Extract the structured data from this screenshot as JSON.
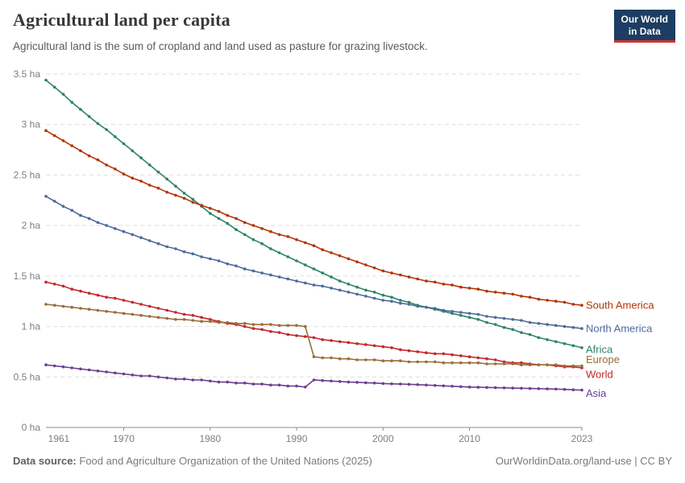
{
  "header": {
    "title": "Agricultural land per capita",
    "subtitle": "Agricultural land is the sum of cropland and land used as pasture for grazing livestock."
  },
  "logo": {
    "line1": "Our World",
    "line2": "in Data",
    "bg": "#1D3D63",
    "accent": "#D0342C"
  },
  "chart_data": {
    "type": "line",
    "title": "Agricultural land per capita",
    "unit": "ha",
    "x_range": [
      1961,
      2023
    ],
    "x_step": 1,
    "x_ticks": [
      1961,
      1970,
      1980,
      1990,
      2000,
      2010,
      2023
    ],
    "y_ticks": [
      0,
      0.5,
      1,
      1.5,
      2,
      2.5,
      3,
      3.5
    ],
    "y_tick_suffix": " ha",
    "ylim": [
      0,
      3.5
    ],
    "grid": "horizontal-dashed",
    "legend_position": "right-end-labels",
    "colors": {
      "grid": "#dedede",
      "axis": "#8c8c8c",
      "tick_text": "#7e7e7e"
    },
    "series": [
      {
        "name": "Africa",
        "color": "#2C8465",
        "label_dy": 2,
        "values": [
          3.44,
          3.37,
          3.3,
          3.22,
          3.15,
          3.08,
          3.01,
          2.95,
          2.88,
          2.81,
          2.74,
          2.67,
          2.6,
          2.53,
          2.46,
          2.39,
          2.32,
          2.26,
          2.19,
          2.12,
          2.07,
          2.02,
          1.96,
          1.91,
          1.86,
          1.82,
          1.77,
          1.73,
          1.69,
          1.65,
          1.61,
          1.57,
          1.53,
          1.49,
          1.45,
          1.42,
          1.39,
          1.36,
          1.34,
          1.31,
          1.29,
          1.26,
          1.24,
          1.21,
          1.19,
          1.17,
          1.15,
          1.13,
          1.11,
          1.09,
          1.07,
          1.04,
          1.02,
          0.99,
          0.97,
          0.94,
          0.92,
          0.89,
          0.87,
          0.85,
          0.83,
          0.81,
          0.79
        ]
      },
      {
        "name": "South America",
        "color": "#B13507",
        "label_dy": 0,
        "values": [
          2.94,
          2.89,
          2.84,
          2.79,
          2.74,
          2.69,
          2.65,
          2.6,
          2.56,
          2.51,
          2.47,
          2.44,
          2.4,
          2.37,
          2.33,
          2.3,
          2.27,
          2.23,
          2.2,
          2.17,
          2.14,
          2.1,
          2.07,
          2.03,
          2.0,
          1.97,
          1.94,
          1.91,
          1.89,
          1.86,
          1.83,
          1.8,
          1.76,
          1.73,
          1.7,
          1.67,
          1.64,
          1.61,
          1.58,
          1.55,
          1.53,
          1.51,
          1.49,
          1.47,
          1.45,
          1.44,
          1.42,
          1.41,
          1.39,
          1.38,
          1.37,
          1.35,
          1.34,
          1.33,
          1.32,
          1.3,
          1.29,
          1.27,
          1.26,
          1.25,
          1.24,
          1.22,
          1.21
        ]
      },
      {
        "name": "North America",
        "color": "#4C6A9C",
        "label_dy": 0,
        "values": [
          2.29,
          2.24,
          2.19,
          2.15,
          2.1,
          2.07,
          2.03,
          2.0,
          1.97,
          1.94,
          1.91,
          1.88,
          1.85,
          1.82,
          1.79,
          1.77,
          1.74,
          1.72,
          1.69,
          1.67,
          1.65,
          1.62,
          1.6,
          1.57,
          1.55,
          1.53,
          1.51,
          1.49,
          1.47,
          1.45,
          1.43,
          1.41,
          1.4,
          1.38,
          1.36,
          1.34,
          1.32,
          1.3,
          1.28,
          1.26,
          1.25,
          1.23,
          1.22,
          1.2,
          1.19,
          1.18,
          1.16,
          1.15,
          1.14,
          1.13,
          1.12,
          1.1,
          1.09,
          1.08,
          1.07,
          1.06,
          1.04,
          1.03,
          1.02,
          1.01,
          1.0,
          0.99,
          0.98
        ]
      },
      {
        "name": "World",
        "color": "#C3272B",
        "label_dy": 8,
        "values": [
          1.44,
          1.42,
          1.4,
          1.37,
          1.35,
          1.33,
          1.31,
          1.29,
          1.28,
          1.26,
          1.24,
          1.22,
          1.2,
          1.18,
          1.16,
          1.14,
          1.12,
          1.11,
          1.09,
          1.07,
          1.05,
          1.03,
          1.02,
          1.0,
          0.98,
          0.97,
          0.95,
          0.94,
          0.92,
          0.91,
          0.9,
          0.89,
          0.87,
          0.86,
          0.85,
          0.84,
          0.83,
          0.82,
          0.81,
          0.8,
          0.79,
          0.77,
          0.76,
          0.75,
          0.74,
          0.73,
          0.73,
          0.72,
          0.71,
          0.7,
          0.69,
          0.68,
          0.67,
          0.65,
          0.64,
          0.64,
          0.63,
          0.62,
          0.62,
          0.61,
          0.6,
          0.6,
          0.59
        ]
      },
      {
        "name": "Europe",
        "color": "#996D39",
        "label_dy": -8,
        "values": [
          1.22,
          1.21,
          1.2,
          1.19,
          1.18,
          1.17,
          1.16,
          1.15,
          1.14,
          1.13,
          1.12,
          1.11,
          1.1,
          1.09,
          1.08,
          1.07,
          1.07,
          1.06,
          1.05,
          1.05,
          1.04,
          1.04,
          1.03,
          1.03,
          1.02,
          1.02,
          1.02,
          1.01,
          1.01,
          1.01,
          1.0,
          0.7,
          0.69,
          0.69,
          0.68,
          0.68,
          0.67,
          0.67,
          0.67,
          0.66,
          0.66,
          0.66,
          0.65,
          0.65,
          0.65,
          0.65,
          0.64,
          0.64,
          0.64,
          0.64,
          0.64,
          0.63,
          0.63,
          0.63,
          0.63,
          0.62,
          0.62,
          0.62,
          0.62,
          0.62,
          0.61,
          0.61,
          0.61
        ]
      },
      {
        "name": "Asia",
        "color": "#6D3E91",
        "label_dy": 4,
        "values": [
          0.62,
          0.61,
          0.6,
          0.59,
          0.58,
          0.57,
          0.56,
          0.55,
          0.54,
          0.53,
          0.52,
          0.51,
          0.51,
          0.5,
          0.49,
          0.48,
          0.48,
          0.47,
          0.47,
          0.46,
          0.45,
          0.45,
          0.44,
          0.44,
          0.43,
          0.43,
          0.42,
          0.42,
          0.41,
          0.41,
          0.4,
          0.47,
          0.465,
          0.46,
          0.455,
          0.45,
          0.447,
          0.443,
          0.44,
          0.435,
          0.432,
          0.43,
          0.427,
          0.424,
          0.42,
          0.416,
          0.412,
          0.408,
          0.404,
          0.4,
          0.398,
          0.396,
          0.394,
          0.392,
          0.39,
          0.388,
          0.386,
          0.384,
          0.382,
          0.38,
          0.377,
          0.373,
          0.37
        ]
      }
    ]
  },
  "footer": {
    "source_label": "Data source:",
    "source": "Food and Agriculture Organization of the United Nations (2025)",
    "credit": "OurWorldinData.org/land-use | CC BY"
  }
}
